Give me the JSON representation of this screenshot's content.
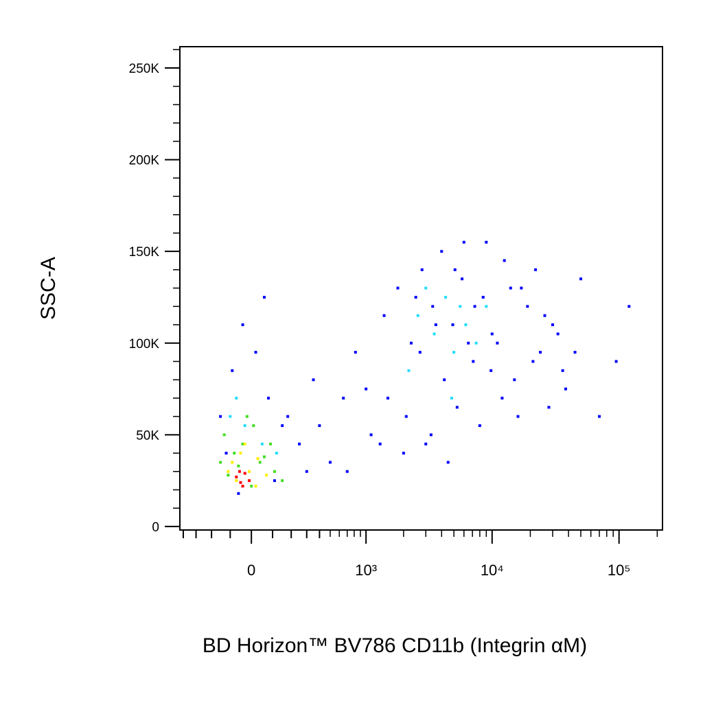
{
  "chart_data": {
    "type": "scatter",
    "xlabel": "BD Horizon™ BV786 CD11b (Integrin αM)",
    "ylabel": "SSC-A",
    "xscale": "biexponential",
    "xlim": [
      -430,
      220000
    ],
    "xticks": [
      0,
      {
        "value": 1000,
        "label": "10³"
      },
      {
        "value": 10000,
        "label": "10⁴"
      },
      {
        "value": 100000,
        "label": "10⁵"
      }
    ],
    "ylim": [
      -1900,
      261600
    ],
    "yticks": [
      0,
      {
        "value": 50000,
        "label": "50K"
      },
      {
        "value": 100000,
        "label": "100K"
      },
      {
        "value": 150000,
        "label": "150K"
      },
      {
        "value": 200000,
        "label": "200K"
      },
      {
        "value": 250000,
        "label": "250K"
      }
    ],
    "series": [
      {
        "color": "#0000ff",
        "x": [
          -150,
          -90,
          -40,
          20,
          80,
          150,
          250,
          -120,
          60,
          180,
          350,
          500,
          650,
          820,
          1100,
          1400,
          1800,
          2300,
          2800,
          3400,
          4000,
          4900,
          5800,
          7100,
          8500,
          10000,
          12500,
          15000,
          19000,
          24000,
          30000,
          38000,
          50000,
          1500,
          2100,
          2700,
          3300,
          4200,
          5300,
          6500,
          8000,
          9800,
          12000,
          16000,
          21000,
          28000,
          36000,
          2500,
          3600,
          5100,
          7300,
          11000,
          17000,
          26000,
          45000,
          70000,
          95000,
          120000,
          400,
          700,
          1000,
          1300,
          -60,
          110,
          300,
          2000,
          3000,
          4500,
          6000,
          9000,
          14000,
          22000,
          33000
        ],
        "y": [
          60000,
          85000,
          110000,
          95000,
          70000,
          55000,
          45000,
          40000,
          125000,
          60000,
          80000,
          35000,
          70000,
          95000,
          50000,
          115000,
          130000,
          100000,
          140000,
          120000,
          150000,
          110000,
          135000,
          90000,
          125000,
          105000,
          145000,
          80000,
          120000,
          95000,
          110000,
          75000,
          135000,
          70000,
          60000,
          95000,
          50000,
          80000,
          65000,
          100000,
          55000,
          85000,
          70000,
          60000,
          90000,
          65000,
          85000,
          125000,
          110000,
          140000,
          120000,
          100000,
          130000,
          115000,
          95000,
          60000,
          90000,
          120000,
          55000,
          30000,
          75000,
          45000,
          18000,
          25000,
          30000,
          40000,
          45000,
          35000,
          155000,
          155000,
          130000,
          140000,
          105000
        ]
      },
      {
        "color": "#22ddff",
        "x": [
          2600,
          3500,
          4300,
          5000,
          6200,
          3000,
          4800,
          7500,
          9000,
          -100,
          -30,
          50,
          120,
          -70,
          2200,
          5600
        ],
        "y": [
          115000,
          105000,
          125000,
          95000,
          110000,
          130000,
          70000,
          100000,
          120000,
          60000,
          55000,
          45000,
          40000,
          70000,
          85000,
          120000
        ]
      },
      {
        "color": "#44dd22",
        "x": [
          -130,
          -80,
          -40,
          10,
          60,
          110,
          -110,
          -20,
          40,
          90,
          -60,
          0,
          -150,
          150
        ],
        "y": [
          50000,
          40000,
          45000,
          55000,
          38000,
          30000,
          28000,
          60000,
          35000,
          45000,
          33000,
          22000,
          35000,
          25000
        ]
      },
      {
        "color": "#ffee00",
        "x": [
          -90,
          -50,
          -10,
          30,
          70,
          -70,
          -30,
          20,
          -110
        ],
        "y": [
          35000,
          40000,
          30000,
          37000,
          28000,
          25000,
          45000,
          22000,
          30000
        ]
      },
      {
        "color": "#ff0000",
        "x": [
          -70,
          -50,
          -30,
          -10,
          -55,
          -40
        ],
        "y": [
          27000,
          24000,
          29000,
          25000,
          30000,
          22000
        ]
      }
    ]
  }
}
